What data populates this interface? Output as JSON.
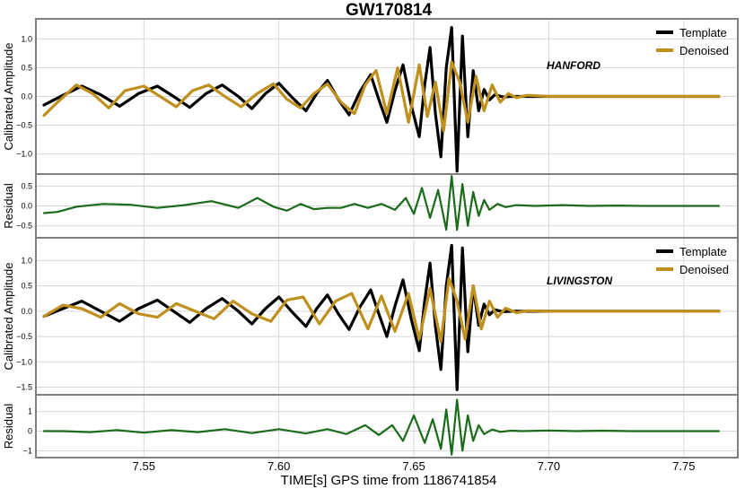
{
  "title": "GW170814",
  "xlabel": "TIME[s] GPS time from 1186741854",
  "colors": {
    "template": "#000000",
    "denoised": "#c0901e",
    "residual": "#1a6b1a",
    "frame": "#808080",
    "grid": "#d8d8d8"
  },
  "chart_data": [
    {
      "type": "line",
      "panel": "hanford-signal",
      "annotation": "HANFORD",
      "ylabel": "Calibrated Amplitude",
      "xlim": [
        7.51,
        7.77
      ],
      "ylim": [
        -1.35,
        1.35
      ],
      "xticks": [
        7.55,
        7.6,
        7.65,
        7.7,
        7.75
      ],
      "xtick_labels": [
        "7.55",
        "7.60",
        "7.65",
        "7.70",
        "7.75"
      ],
      "yticks": [
        -1.0,
        -0.5,
        0.0,
        0.5,
        1.0
      ],
      "ytick_labels": [
        "−1.0",
        "−0.5",
        "0.0",
        "0.5",
        "1.0"
      ],
      "legend": {
        "placement": "top-right",
        "entries": [
          "Template",
          "Denoised"
        ]
      },
      "series": [
        {
          "name": "Template",
          "color": "#000000",
          "x": [
            7.513,
            7.52,
            7.527,
            7.534,
            7.541,
            7.548,
            7.555,
            7.561,
            7.567,
            7.573,
            7.579,
            7.585,
            7.59,
            7.595,
            7.6,
            7.605,
            7.61,
            7.614,
            7.618,
            7.622,
            7.626,
            7.63,
            7.634,
            7.637,
            7.64,
            7.643,
            7.646,
            7.649,
            7.652,
            7.654,
            7.656,
            7.658,
            7.66,
            7.662,
            7.664,
            7.666,
            7.668,
            7.67,
            7.672,
            7.674,
            7.676,
            7.678,
            7.68,
            7.683,
            7.686,
            7.69,
            7.7,
            7.72,
            7.74,
            7.763
          ],
          "y": [
            -0.15,
            0.02,
            0.18,
            0.03,
            -0.17,
            0.05,
            0.18,
            0.0,
            -0.19,
            0.05,
            0.2,
            0.0,
            -0.21,
            0.05,
            0.23,
            -0.02,
            -0.25,
            0.05,
            0.28,
            -0.05,
            -0.32,
            0.08,
            0.38,
            -0.05,
            -0.45,
            0.1,
            0.55,
            -0.15,
            -0.7,
            0.2,
            0.85,
            -0.3,
            -1.05,
            0.5,
            1.2,
            -1.3,
            1.05,
            -0.7,
            0.45,
            -0.25,
            0.12,
            -0.06,
            0.03,
            -0.01,
            0.0,
            0.0,
            0.0,
            0.0,
            0.0,
            0.0
          ]
        },
        {
          "name": "Denoised",
          "color": "#c0901e",
          "x": [
            7.513,
            7.518,
            7.525,
            7.531,
            7.537,
            7.543,
            7.55,
            7.556,
            7.562,
            7.568,
            7.574,
            7.58,
            7.586,
            7.592,
            7.598,
            7.603,
            7.608,
            7.613,
            7.618,
            7.623,
            7.628,
            7.632,
            7.636,
            7.64,
            7.644,
            7.648,
            7.652,
            7.655,
            7.658,
            7.661,
            7.664,
            7.667,
            7.67,
            7.673,
            7.676,
            7.679,
            7.682,
            7.685,
            7.688,
            7.692,
            7.7,
            7.72,
            7.74,
            7.763
          ],
          "y": [
            -0.33,
            -0.1,
            0.2,
            0.05,
            -0.2,
            0.1,
            0.18,
            0.0,
            -0.18,
            0.1,
            0.2,
            0.0,
            -0.18,
            0.05,
            0.22,
            -0.05,
            -0.2,
            0.05,
            0.22,
            -0.1,
            -0.3,
            0.2,
            0.45,
            -0.3,
            0.5,
            -0.45,
            0.55,
            -0.35,
            0.25,
            -0.6,
            0.6,
            0.25,
            -0.45,
            0.35,
            -0.25,
            0.2,
            -0.1,
            0.05,
            -0.02,
            0.02,
            0.0,
            0.0,
            0.0,
            0.0
          ]
        }
      ]
    },
    {
      "type": "line",
      "panel": "hanford-residual",
      "ylabel": "Residual",
      "xlim": [
        7.51,
        7.77
      ],
      "ylim": [
        -0.8,
        0.8
      ],
      "yticks": [
        -0.5,
        0.0,
        0.5
      ],
      "ytick_labels": [
        "−0.5",
        "0.0",
        "0.5"
      ],
      "series": [
        {
          "color": "#1a6b1a",
          "x": [
            7.513,
            7.518,
            7.525,
            7.535,
            7.545,
            7.555,
            7.565,
            7.575,
            7.585,
            7.592,
            7.598,
            7.603,
            7.608,
            7.613,
            7.618,
            7.623,
            7.628,
            7.633,
            7.638,
            7.643,
            7.647,
            7.65,
            7.653,
            7.656,
            7.659,
            7.662,
            7.664,
            7.666,
            7.668,
            7.67,
            7.672,
            7.674,
            7.676,
            7.678,
            7.681,
            7.684,
            7.688,
            7.695,
            7.705,
            7.715,
            7.725,
            7.735,
            7.763
          ],
          "y": [
            -0.18,
            -0.15,
            -0.02,
            0.05,
            0.03,
            -0.05,
            0.02,
            0.12,
            -0.05,
            0.2,
            -0.02,
            -0.12,
            0.05,
            -0.08,
            -0.05,
            -0.05,
            0.05,
            -0.05,
            0.05,
            -0.1,
            0.2,
            -0.2,
            0.45,
            -0.3,
            0.4,
            -0.6,
            0.75,
            -0.6,
            0.55,
            -0.5,
            0.35,
            -0.25,
            0.15,
            -0.1,
            0.05,
            -0.03,
            0.02,
            0.0,
            0.02,
            0.0,
            0.01,
            0.0,
            0.0
          ]
        }
      ]
    },
    {
      "type": "line",
      "panel": "livingston-signal",
      "annotation": "LIVINGSTON",
      "ylabel": "Calibrated Amplitude",
      "xlim": [
        7.51,
        7.77
      ],
      "ylim": [
        -1.65,
        1.45
      ],
      "yticks": [
        -1.5,
        -1.0,
        -0.5,
        0.0,
        0.5,
        1.0
      ],
      "ytick_labels": [
        "−1.5",
        "−1.0",
        "−0.5",
        "0.0",
        "0.5",
        "1.0"
      ],
      "legend": {
        "placement": "top-right",
        "entries": [
          "Template",
          "Denoised"
        ]
      },
      "series": [
        {
          "name": "Template",
          "color": "#000000",
          "x": [
            7.513,
            7.52,
            7.527,
            7.534,
            7.541,
            7.548,
            7.555,
            7.561,
            7.567,
            7.573,
            7.579,
            7.585,
            7.59,
            7.595,
            7.6,
            7.605,
            7.61,
            7.614,
            7.618,
            7.622,
            7.626,
            7.63,
            7.634,
            7.637,
            7.64,
            7.643,
            7.646,
            7.649,
            7.652,
            7.654,
            7.656,
            7.658,
            7.66,
            7.662,
            7.664,
            7.666,
            7.668,
            7.67,
            7.672,
            7.674,
            7.676,
            7.678,
            7.68,
            7.683,
            7.686,
            7.69,
            7.7,
            7.72,
            7.74,
            7.763
          ],
          "y": [
            -0.1,
            0.05,
            0.2,
            0.0,
            -0.2,
            0.05,
            0.22,
            0.0,
            -0.22,
            0.05,
            0.25,
            0.0,
            -0.25,
            0.05,
            0.28,
            -0.02,
            -0.3,
            0.05,
            0.32,
            -0.05,
            -0.36,
            0.08,
            0.42,
            -0.05,
            -0.5,
            0.1,
            0.62,
            -0.15,
            -0.78,
            0.2,
            0.95,
            -0.3,
            -1.15,
            0.5,
            1.3,
            -1.55,
            1.25,
            -0.8,
            0.5,
            -0.28,
            0.14,
            -0.07,
            0.03,
            -0.01,
            0.0,
            0.0,
            0.0,
            0.0,
            0.0,
            0.0
          ]
        },
        {
          "name": "Denoised",
          "color": "#c0901e",
          "x": [
            7.513,
            7.52,
            7.527,
            7.534,
            7.541,
            7.548,
            7.555,
            7.562,
            7.569,
            7.576,
            7.583,
            7.59,
            7.597,
            7.603,
            7.609,
            7.615,
            7.621,
            7.627,
            7.633,
            7.638,
            7.643,
            7.648,
            7.652,
            7.656,
            7.66,
            7.663,
            7.666,
            7.669,
            7.672,
            7.675,
            7.678,
            7.681,
            7.684,
            7.688,
            7.692,
            7.7,
            7.72,
            7.74,
            7.763
          ],
          "y": [
            -0.1,
            0.12,
            0.05,
            -0.12,
            0.15,
            -0.05,
            -0.12,
            0.15,
            0.0,
            -0.15,
            0.2,
            -0.05,
            -0.2,
            0.22,
            0.28,
            -0.25,
            0.2,
            0.35,
            -0.35,
            0.3,
            -0.4,
            0.35,
            -0.55,
            0.45,
            -0.6,
            0.65,
            0.2,
            -0.55,
            0.5,
            -0.35,
            0.2,
            -0.12,
            0.06,
            -0.03,
            0.01,
            0.0,
            0.0,
            0.0,
            0.0
          ]
        }
      ]
    },
    {
      "type": "line",
      "panel": "livingston-residual",
      "ylabel": "Residual",
      "xlim": [
        7.51,
        7.77
      ],
      "ylim": [
        -1.35,
        1.85
      ],
      "yticks": [
        -1,
        0,
        1
      ],
      "ytick_labels": [
        "−1",
        "0",
        "1"
      ],
      "series": [
        {
          "color": "#1a6b1a",
          "x": [
            7.513,
            7.52,
            7.53,
            7.54,
            7.55,
            7.56,
            7.57,
            7.58,
            7.59,
            7.6,
            7.61,
            7.618,
            7.625,
            7.632,
            7.637,
            7.642,
            7.646,
            7.65,
            7.654,
            7.657,
            7.66,
            7.662,
            7.664,
            7.666,
            7.668,
            7.67,
            7.672,
            7.674,
            7.676,
            7.679,
            7.682,
            7.686,
            7.69,
            7.7,
            7.71,
            7.72,
            7.73,
            7.763
          ],
          "y": [
            0.0,
            0.0,
            -0.05,
            0.05,
            -0.08,
            0.05,
            -0.05,
            0.1,
            -0.1,
            0.1,
            -0.12,
            0.1,
            -0.15,
            0.3,
            -0.2,
            0.3,
            -0.5,
            0.8,
            -0.6,
            0.6,
            -0.9,
            1.1,
            -1.2,
            1.6,
            -1.0,
            0.8,
            -0.5,
            0.3,
            -0.15,
            0.08,
            -0.04,
            0.02,
            0.0,
            0.03,
            0.0,
            0.02,
            0.0,
            0.0
          ]
        }
      ]
    }
  ]
}
